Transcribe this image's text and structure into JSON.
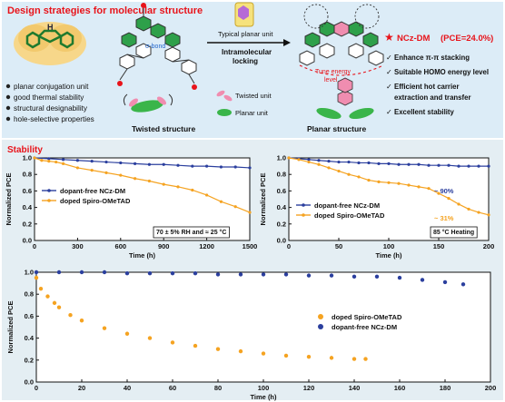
{
  "design": {
    "title": "Design strategies for molecular structure",
    "nh_label": "H",
    "bullets": [
      "planar conjugation unit",
      "good thermal stability",
      "structural designability",
      "hole-selective properties"
    ],
    "sigma_label": "σ-bond",
    "twisted_label": "Twisted structure",
    "legend_twisted": "Twisted unit",
    "legend_planar": "Planar unit",
    "typical_planar": "Typical planar unit",
    "locking_label": "Intramolecular\nlocking",
    "tune_label": "Tune energy\nlevel",
    "planar_label": "Planar structure",
    "product": "NCz-DM",
    "pce": "(PCE=24.0%)",
    "checks": [
      "Enhance π-π stacking",
      "Suitable HOMO energy level",
      "Efficient hot carrier\nextraction and transfer",
      "Excellent stability"
    ],
    "colors": {
      "accent_red": "#e8131a",
      "green": "#2ea04a",
      "pink": "#f08db0",
      "panel_bg": "#dcecf7",
      "stability_bg": "#e4eef3"
    }
  },
  "stability": {
    "title": "Stability"
  },
  "chart_data": [
    {
      "type": "line",
      "xlabel": "Time (h)",
      "ylabel": "Normalized PCE",
      "xlim": [
        0,
        1500
      ],
      "ylim": [
        0.0,
        1.0
      ],
      "xticks": [
        0,
        300,
        600,
        900,
        1200,
        1500
      ],
      "yticks": [
        0.0,
        0.2,
        0.4,
        0.6,
        0.8,
        1.0
      ],
      "annotation": "70 ± 5% RH and ≈ 25 °C",
      "legend_position": "center-left",
      "series": [
        {
          "name": "dopant-free NCz-DM",
          "color": "#2b3f9e",
          "x": [
            0,
            100,
            200,
            300,
            400,
            500,
            600,
            700,
            800,
            900,
            1000,
            1100,
            1200,
            1300,
            1400,
            1500
          ],
          "y": [
            1.0,
            0.99,
            0.98,
            0.97,
            0.96,
            0.95,
            0.94,
            0.93,
            0.92,
            0.92,
            0.91,
            0.9,
            0.9,
            0.89,
            0.89,
            0.88
          ]
        },
        {
          "name": "doped Spiro-OMeTAD",
          "color": "#f5a321",
          "x": [
            0,
            50,
            100,
            150,
            200,
            300,
            400,
            500,
            600,
            700,
            800,
            900,
            1000,
            1100,
            1200,
            1300,
            1400,
            1500
          ],
          "y": [
            1.0,
            0.97,
            0.96,
            0.95,
            0.93,
            0.88,
            0.85,
            0.82,
            0.79,
            0.75,
            0.72,
            0.68,
            0.65,
            0.61,
            0.55,
            0.47,
            0.41,
            0.34
          ]
        }
      ]
    },
    {
      "type": "line",
      "xlabel": "Time (h)",
      "ylabel": "Normalized PCE",
      "xlim": [
        0,
        200
      ],
      "ylim": [
        0.0,
        1.0
      ],
      "xticks": [
        0,
        50,
        100,
        150,
        200
      ],
      "yticks": [
        0.0,
        0.2,
        0.4,
        0.6,
        0.8,
        1.0
      ],
      "annotation": "85 °C Heating",
      "value_labels": [
        "~ 90%",
        "~ 31%"
      ],
      "legend_position": "center-left",
      "series": [
        {
          "name": "dopant-free NCz-DM",
          "color": "#2b3f9e",
          "x": [
            0,
            10,
            20,
            30,
            40,
            50,
            60,
            70,
            80,
            90,
            100,
            110,
            120,
            130,
            140,
            150,
            160,
            170,
            180,
            190,
            200
          ],
          "y": [
            1.0,
            0.99,
            0.98,
            0.97,
            0.96,
            0.95,
            0.95,
            0.94,
            0.94,
            0.93,
            0.93,
            0.92,
            0.92,
            0.92,
            0.91,
            0.91,
            0.91,
            0.9,
            0.9,
            0.9,
            0.9
          ]
        },
        {
          "name": "doped Spiro-OMeTAD",
          "color": "#f5a321",
          "x": [
            0,
            10,
            20,
            30,
            40,
            50,
            60,
            70,
            80,
            90,
            100,
            110,
            120,
            130,
            140,
            150,
            160,
            170,
            180,
            190,
            200
          ],
          "y": [
            1.0,
            0.98,
            0.95,
            0.92,
            0.88,
            0.84,
            0.8,
            0.77,
            0.73,
            0.71,
            0.7,
            0.69,
            0.67,
            0.65,
            0.63,
            0.57,
            0.51,
            0.44,
            0.38,
            0.34,
            0.31
          ]
        }
      ]
    },
    {
      "type": "scatter",
      "xlabel": "Time (h)",
      "ylabel": "Normalized PCE",
      "xlim": [
        0,
        200
      ],
      "ylim": [
        0.0,
        1.0
      ],
      "xticks": [
        0,
        20,
        40,
        60,
        80,
        100,
        120,
        140,
        160,
        180,
        200
      ],
      "yticks": [
        0.0,
        0.2,
        0.4,
        0.6,
        0.8,
        1.0
      ],
      "legend_position": "center-right",
      "series": [
        {
          "name": "doped Spiro-OMeTAD",
          "color": "#f5a321",
          "x": [
            0,
            2,
            5,
            8,
            10,
            15,
            20,
            30,
            40,
            50,
            60,
            70,
            80,
            90,
            100,
            110,
            120,
            130,
            140,
            145
          ],
          "y": [
            0.95,
            0.85,
            0.78,
            0.72,
            0.68,
            0.61,
            0.56,
            0.49,
            0.44,
            0.4,
            0.36,
            0.33,
            0.3,
            0.28,
            0.26,
            0.24,
            0.23,
            0.22,
            0.21,
            0.21
          ]
        },
        {
          "name": "dopant-free NCz-DM",
          "color": "#2b3f9e",
          "x": [
            0,
            10,
            20,
            30,
            40,
            50,
            60,
            70,
            80,
            90,
            100,
            110,
            120,
            130,
            140,
            150,
            160,
            170,
            180,
            188
          ],
          "y": [
            1.0,
            1.0,
            1.0,
            1.0,
            0.99,
            0.99,
            0.99,
            0.99,
            0.98,
            0.98,
            0.98,
            0.98,
            0.97,
            0.97,
            0.96,
            0.96,
            0.95,
            0.93,
            0.91,
            0.89
          ]
        }
      ]
    }
  ]
}
